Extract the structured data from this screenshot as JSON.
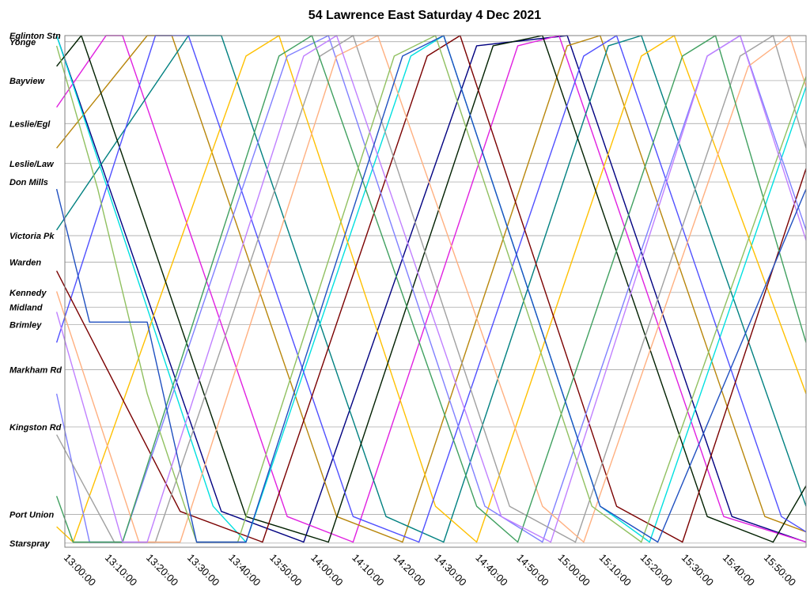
{
  "chart_data": {
    "type": "line",
    "title": "54 Lawrence East Saturday 4 Dec 2021",
    "x_tick_labels": [
      "13:00:00",
      "13:10:00",
      "13:20:00",
      "13:30:00",
      "13:40:00",
      "13:50:00",
      "14:00:00",
      "14:10:00",
      "14:20:00",
      "14:30:00",
      "14:40:00",
      "14:50:00",
      "15:00:00",
      "15:10:00",
      "15:20:00",
      "15:30:00",
      "15:40:00",
      "15:50:00"
    ],
    "xlim": [
      "13:00:00",
      "16:00:00"
    ],
    "ylim": [
      0,
      100
    ],
    "stops": [
      {
        "name": "Eglinton Stn",
        "pos": 0
      },
      {
        "name": "Yonge",
        "pos": 1.2
      },
      {
        "name": "Bayview",
        "pos": 8.8
      },
      {
        "name": "Leslie/Egl",
        "pos": 17.2
      },
      {
        "name": "Leslie/Law",
        "pos": 25.0
      },
      {
        "name": "Don Mills",
        "pos": 28.6
      },
      {
        "name": "Victoria Pk",
        "pos": 39.1
      },
      {
        "name": "Warden",
        "pos": 44.3
      },
      {
        "name": "Kennedy",
        "pos": 50.2
      },
      {
        "name": "Midland",
        "pos": 53.1
      },
      {
        "name": "Brimley",
        "pos": 56.5
      },
      {
        "name": "Markham Rd",
        "pos": 65.3
      },
      {
        "name": "Kingston Rd",
        "pos": 76.5
      },
      {
        "name": "Port Union",
        "pos": 93.6
      },
      {
        "name": "Starspray",
        "pos": 99.2
      }
    ],
    "series": [
      {
        "color": "#000080",
        "points": [
          [
            "12:58",
            0
          ],
          [
            "13:38",
            93
          ],
          [
            "13:58",
            99
          ],
          [
            "14:40",
            2
          ],
          [
            "15:02",
            0
          ],
          [
            "15:42",
            94
          ],
          [
            "16:00",
            99
          ]
        ]
      },
      {
        "color": "#e020e0",
        "points": [
          [
            "12:58",
            14
          ],
          [
            "13:10",
            0
          ],
          [
            "13:14",
            0
          ],
          [
            "13:54",
            94
          ],
          [
            "14:10",
            99
          ],
          [
            "14:50",
            2
          ],
          [
            "15:00",
            0
          ],
          [
            "15:40",
            94
          ],
          [
            "16:00",
            99
          ]
        ]
      },
      {
        "color": "#b8860b",
        "points": [
          [
            "12:58",
            22
          ],
          [
            "13:20",
            0
          ],
          [
            "13:26",
            0
          ],
          [
            "14:06",
            94
          ],
          [
            "14:22",
            99
          ],
          [
            "15:02",
            2
          ],
          [
            "15:10",
            0
          ],
          [
            "15:50",
            94
          ],
          [
            "16:00",
            97
          ]
        ]
      },
      {
        "color": "#008080",
        "points": [
          [
            "12:58",
            38
          ],
          [
            "13:30",
            0
          ],
          [
            "13:38",
            0
          ],
          [
            "14:18",
            94
          ],
          [
            "14:32",
            99
          ],
          [
            "15:12",
            2
          ],
          [
            "15:20",
            0
          ],
          [
            "16:00",
            92
          ]
        ]
      },
      {
        "color": "#00e0e0",
        "points": [
          [
            "12:58",
            0
          ],
          [
            "13:36",
            92
          ],
          [
            "13:44",
            99
          ],
          [
            "14:24",
            4
          ],
          [
            "14:32",
            0
          ],
          [
            "15:10",
            92
          ],
          [
            "15:22",
            99
          ],
          [
            "16:00",
            10
          ]
        ]
      },
      {
        "color": "#ffc000",
        "points": [
          [
            "12:58",
            96
          ],
          [
            "13:02",
            99
          ],
          [
            "13:44",
            4
          ],
          [
            "13:52",
            0
          ],
          [
            "14:30",
            92
          ],
          [
            "14:40",
            99
          ],
          [
            "15:20",
            4
          ],
          [
            "15:28",
            0
          ],
          [
            "16:00",
            70
          ]
        ]
      },
      {
        "color": "#002000",
        "points": [
          [
            "12:58",
            6
          ],
          [
            "13:04",
            0
          ],
          [
            "13:44",
            94
          ],
          [
            "14:04",
            99
          ],
          [
            "14:44",
            2
          ],
          [
            "14:56",
            0
          ],
          [
            "15:36",
            94
          ],
          [
            "15:52",
            99
          ],
          [
            "16:00",
            88
          ]
        ]
      },
      {
        "color": "#5050ff",
        "points": [
          [
            "12:58",
            60
          ],
          [
            "13:22",
            0
          ],
          [
            "13:30",
            0
          ],
          [
            "14:10",
            94
          ],
          [
            "14:26",
            99
          ],
          [
            "15:06",
            4
          ],
          [
            "15:14",
            0
          ],
          [
            "15:54",
            94
          ],
          [
            "16:00",
            97
          ]
        ]
      },
      {
        "color": "#7a0000",
        "points": [
          [
            "12:58",
            46
          ],
          [
            "13:28",
            93
          ],
          [
            "13:48",
            99
          ],
          [
            "14:28",
            4
          ],
          [
            "14:36",
            0
          ],
          [
            "15:14",
            92
          ],
          [
            "15:30",
            99
          ],
          [
            "16:00",
            26
          ]
        ]
      },
      {
        "color": "#8080ff",
        "points": [
          [
            "12:58",
            70
          ],
          [
            "13:06",
            99
          ],
          [
            "13:14",
            99
          ],
          [
            "13:54",
            4
          ],
          [
            "14:04",
            0
          ],
          [
            "14:42",
            92
          ],
          [
            "14:56",
            99
          ],
          [
            "15:36",
            4
          ],
          [
            "15:44",
            0
          ],
          [
            "16:00",
            38
          ]
        ]
      },
      {
        "color": "#a0a0a0",
        "points": [
          [
            "12:58",
            78
          ],
          [
            "13:12",
            99
          ],
          [
            "13:22",
            99
          ],
          [
            "14:02",
            4
          ],
          [
            "14:10",
            0
          ],
          [
            "14:48",
            92
          ],
          [
            "15:04",
            99
          ],
          [
            "15:44",
            4
          ],
          [
            "15:52",
            0
          ],
          [
            "16:00",
            22
          ]
        ]
      },
      {
        "color": "#ffb080",
        "points": [
          [
            "12:58",
            50
          ],
          [
            "13:18",
            99
          ],
          [
            "13:28",
            99
          ],
          [
            "14:06",
            4
          ],
          [
            "14:16",
            0
          ],
          [
            "14:56",
            92
          ],
          [
            "15:06",
            99
          ],
          [
            "15:46",
            6
          ],
          [
            "15:56",
            0
          ],
          [
            "16:00",
            10
          ]
        ]
      },
      {
        "color": "#40a060",
        "points": [
          [
            "12:58",
            90
          ],
          [
            "13:02",
            99
          ],
          [
            "13:14",
            99
          ],
          [
            "13:52",
            4
          ],
          [
            "14:00",
            0
          ],
          [
            "14:40",
            92
          ],
          [
            "14:50",
            99
          ],
          [
            "15:30",
            4
          ],
          [
            "15:38",
            0
          ],
          [
            "16:00",
            60
          ]
        ]
      },
      {
        "color": "#90c060",
        "points": [
          [
            "12:58",
            2
          ],
          [
            "13:08",
            30
          ],
          [
            "13:20",
            70
          ],
          [
            "13:32",
            99
          ],
          [
            "13:42",
            99
          ],
          [
            "14:20",
            4
          ],
          [
            "14:30",
            0
          ],
          [
            "15:08",
            92
          ],
          [
            "15:20",
            99
          ],
          [
            "16:00",
            8
          ]
        ]
      },
      {
        "color": "#c080ff",
        "points": [
          [
            "12:58",
            54
          ],
          [
            "13:14",
            99
          ],
          [
            "13:20",
            99
          ],
          [
            "13:58",
            4
          ],
          [
            "14:06",
            0
          ],
          [
            "14:46",
            94
          ],
          [
            "14:58",
            99
          ],
          [
            "15:36",
            4
          ],
          [
            "15:44",
            0
          ],
          [
            "16:00",
            40
          ]
        ]
      },
      {
        "color": "#2050c0",
        "points": [
          [
            "12:58",
            30
          ],
          [
            "13:06",
            56
          ],
          [
            "13:20",
            56
          ],
          [
            "13:32",
            99
          ],
          [
            "13:44",
            99
          ],
          [
            "14:22",
            4
          ],
          [
            "14:32",
            0
          ],
          [
            "15:10",
            92
          ],
          [
            "15:24",
            99
          ],
          [
            "16:00",
            30
          ]
        ]
      }
    ]
  }
}
